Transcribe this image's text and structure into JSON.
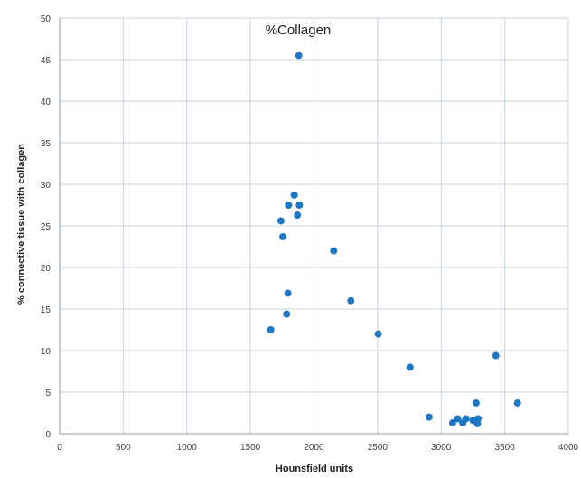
{
  "chart_data": {
    "type": "scatter",
    "title": "%Collagen",
    "xlabel": "Hounsfield units",
    "ylabel": "% connective tissue with collagen",
    "xlim": [
      0,
      4000
    ],
    "ylim": [
      0,
      50
    ],
    "xticks": [
      0,
      500,
      1000,
      1500,
      2000,
      2500,
      3000,
      3500,
      4000
    ],
    "yticks": [
      0,
      5,
      10,
      15,
      20,
      25,
      30,
      35,
      40,
      45,
      50
    ],
    "grid": true,
    "legend": "none",
    "marker_color": "#1f77c4",
    "points": [
      {
        "x": 1880,
        "y": 45.5
      },
      {
        "x": 1845,
        "y": 28.7
      },
      {
        "x": 1800,
        "y": 27.5
      },
      {
        "x": 1885,
        "y": 27.5
      },
      {
        "x": 1870,
        "y": 26.3
      },
      {
        "x": 1740,
        "y": 25.6
      },
      {
        "x": 1755,
        "y": 23.7
      },
      {
        "x": 2155,
        "y": 22.0
      },
      {
        "x": 1795,
        "y": 16.9
      },
      {
        "x": 2290,
        "y": 16.0
      },
      {
        "x": 1785,
        "y": 14.4
      },
      {
        "x": 1660,
        "y": 12.5
      },
      {
        "x": 2505,
        "y": 12.0
      },
      {
        "x": 3430,
        "y": 9.4
      },
      {
        "x": 2755,
        "y": 8.0
      },
      {
        "x": 3275,
        "y": 3.7
      },
      {
        "x": 3600,
        "y": 3.7
      },
      {
        "x": 2905,
        "y": 2.0
      },
      {
        "x": 3130,
        "y": 1.8
      },
      {
        "x": 3195,
        "y": 1.8
      },
      {
        "x": 3250,
        "y": 1.6
      },
      {
        "x": 3290,
        "y": 1.8
      },
      {
        "x": 3090,
        "y": 1.3
      },
      {
        "x": 3170,
        "y": 1.3
      },
      {
        "x": 3285,
        "y": 1.2
      }
    ]
  }
}
